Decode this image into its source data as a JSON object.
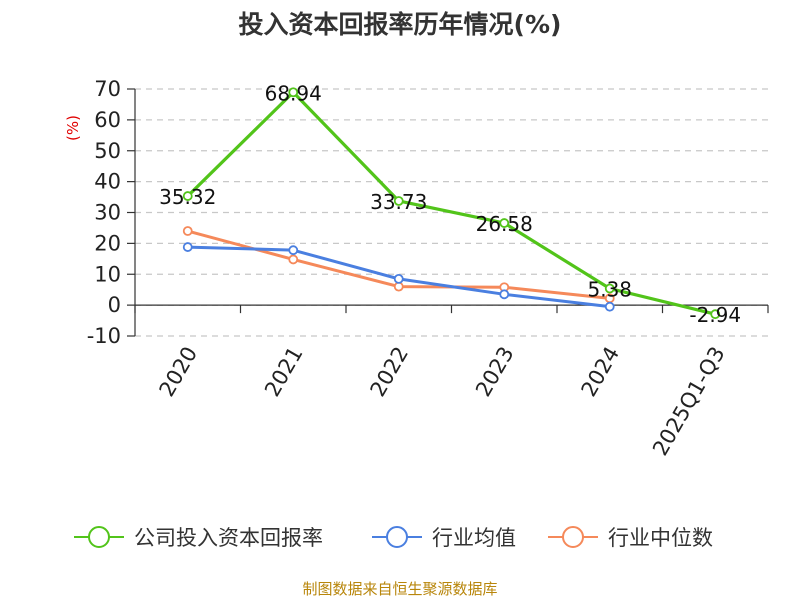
{
  "chart_data": {
    "type": "line",
    "title": "投入资本回报率历年情况(%)",
    "ylabel": "(%)",
    "xlabel": "",
    "categories": [
      "2020",
      "2021",
      "2022",
      "2023",
      "2024",
      "2025Q1-Q3"
    ],
    "ylim": [
      -10,
      70
    ],
    "yticks": [
      70,
      60,
      50,
      40,
      30,
      20,
      10,
      0,
      -10
    ],
    "grid": true,
    "legend_position": "bottom",
    "series": [
      {
        "name": "公司投入资本回报率",
        "color": "#52c41a",
        "values": [
          35.32,
          68.94,
          33.73,
          26.58,
          5.38,
          -2.94
        ],
        "labels": [
          "35.32",
          "68.94",
          "33.73",
          "26.58",
          "5.38",
          "-2.94"
        ]
      },
      {
        "name": "行业均值",
        "color": "#4a7fe0",
        "values": [
          18.8,
          17.8,
          8.5,
          3.5,
          -0.5,
          null
        ]
      },
      {
        "name": "行业中位数",
        "color": "#f5895a",
        "values": [
          24.0,
          14.8,
          6.0,
          5.8,
          2.2,
          null
        ]
      }
    ]
  },
  "source": "制图数据来自恒生聚源数据库"
}
